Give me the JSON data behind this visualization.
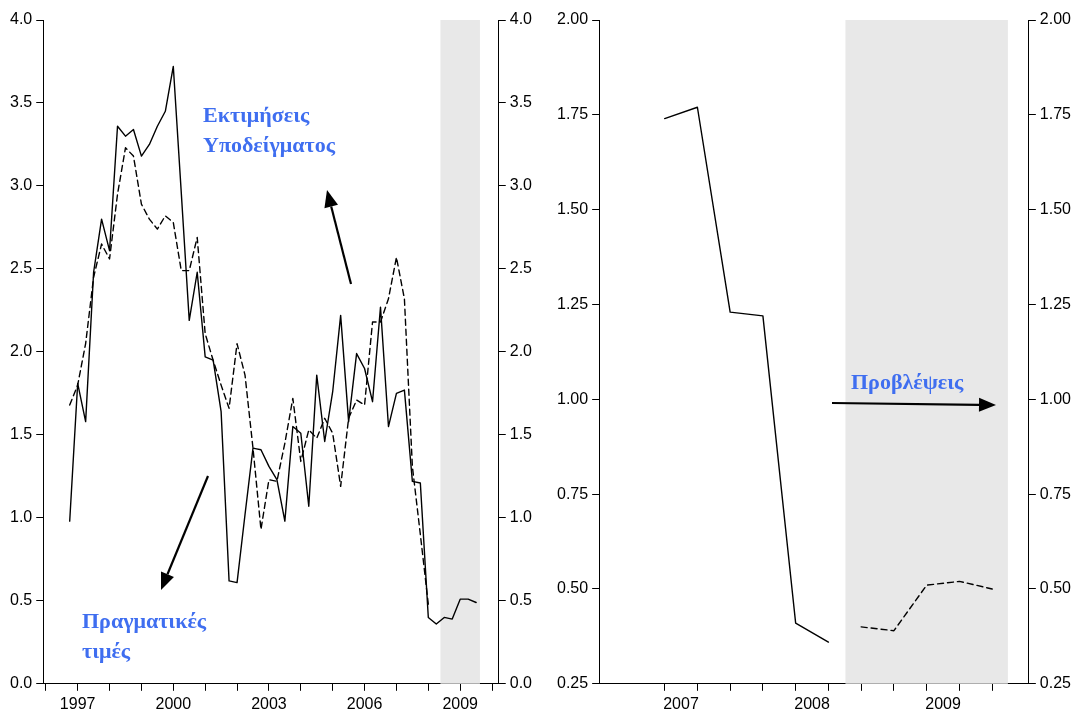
{
  "chart_data": [
    {
      "type": "line",
      "x": [
        1996.75,
        1997,
        1997.25,
        1997.5,
        1997.75,
        1998,
        1998.25,
        1998.5,
        1998.75,
        1999,
        1999.25,
        1999.5,
        1999.75,
        2000,
        2000.25,
        2000.5,
        2000.75,
        2001,
        2001.25,
        2001.5,
        2001.75,
        2002,
        2002.25,
        2002.5,
        2002.75,
        2003,
        2003.25,
        2003.5,
        2003.75,
        2004,
        2004.25,
        2004.5,
        2004.75,
        2005,
        2005.25,
        2005.5,
        2005.75,
        2006,
        2006.25,
        2006.5,
        2006.75,
        2007,
        2007.25,
        2007.5,
        2007.75,
        2008,
        2008.25,
        2008.5,
        2008.75,
        2009,
        2009.25,
        2009.5
      ],
      "series": [
        {
          "color": "#000000",
          "line_style": "solid",
          "values": [
            0.98,
            1.81,
            1.58,
            2.48,
            2.8,
            2.61,
            3.36,
            3.3,
            3.34,
            3.18,
            3.25,
            3.36,
            3.45,
            3.72,
            2.96,
            2.19,
            2.48,
            1.97,
            1.95,
            1.64,
            0.62,
            0.61,
            1.02,
            1.42,
            1.41,
            1.31,
            1.23,
            0.98,
            1.55,
            1.51,
            1.07,
            1.86,
            1.46,
            1.76,
            2.22,
            1.58,
            1.99,
            1.9,
            1.7,
            2.27,
            1.55,
            1.75,
            1.77,
            1.22,
            1.21,
            0.4,
            0.36,
            0.4,
            0.39,
            0.51,
            0.51,
            0.49
          ]
        },
        {
          "color": "#000000",
          "line_style": "dashed",
          "x": [
            1996.75,
            1997,
            1997.25,
            1997.5,
            1997.75,
            1998,
            1998.25,
            1998.5,
            1998.75,
            1999,
            1999.25,
            1999.5,
            1999.75,
            2000,
            2000.25,
            2000.5,
            2000.75,
            2001,
            2001.25,
            2001.5,
            2001.75,
            2002,
            2002.25,
            2002.5,
            2002.75,
            2003,
            2003.25,
            2003.5,
            2003.75,
            2004,
            2004.25,
            2004.5,
            2004.75,
            2005,
            2005.25,
            2005.5,
            2005.75,
            2006,
            2006.25,
            2006.5,
            2006.75,
            2007,
            2007.25,
            2007.5,
            2007.75,
            2008
          ],
          "values": [
            1.68,
            1.8,
            2.05,
            2.45,
            2.65,
            2.56,
            2.95,
            3.23,
            3.18,
            2.89,
            2.8,
            2.74,
            2.82,
            2.78,
            2.49,
            2.49,
            2.69,
            2.11,
            1.95,
            1.8,
            1.66,
            2.05,
            1.86,
            1.42,
            0.93,
            1.23,
            1.22,
            1.45,
            1.72,
            1.34,
            1.53,
            1.48,
            1.6,
            1.51,
            1.19,
            1.6,
            1.71,
            1.68,
            2.18,
            2.18,
            2.32,
            2.57,
            2.32,
            1.31,
            0.9,
            0.48
          ]
        }
      ],
      "xlim": [
        1995.92,
        2010.21
      ],
      "xticks": [
        {
          "value": 1996,
          "label": null
        },
        1997,
        {
          "value": 1998,
          "label": null
        },
        {
          "value": 1999,
          "label": null
        },
        2000,
        {
          "value": 2001,
          "label": null
        },
        {
          "value": 2002,
          "label": null
        },
        2003,
        {
          "value": 2004,
          "label": null
        },
        {
          "value": 2005,
          "label": null
        },
        2006,
        {
          "value": 2007,
          "label": null
        },
        {
          "value": 2008,
          "label": null
        },
        2009,
        {
          "value": 2010,
          "label": null
        }
      ],
      "ylim": [
        0,
        4
      ],
      "yticks": [
        {
          "value": 0,
          "label": "0.0"
        },
        {
          "value": 0.5,
          "label": "0.5"
        },
        {
          "value": 1,
          "label": "1.0"
        },
        {
          "value": 1.5,
          "label": "1.5"
        },
        {
          "value": 2,
          "label": "2.0"
        },
        {
          "value": 2.5,
          "label": "2.5"
        },
        {
          "value": 3,
          "label": "3.0"
        },
        {
          "value": 3.5,
          "label": "3.5"
        },
        {
          "value": 4,
          "label": "4.0"
        }
      ],
      "y2lim": [
        0,
        4
      ],
      "y2ticks": [
        {
          "value": 0,
          "label": "0.0"
        },
        {
          "value": 0.5,
          "label": "0.5"
        },
        {
          "value": 1,
          "label": "1.0"
        },
        {
          "value": 1.5,
          "label": "1.5"
        },
        {
          "value": 2,
          "label": "2.0"
        },
        {
          "value": 2.5,
          "label": "2.5"
        },
        {
          "value": 3,
          "label": "3.0"
        },
        {
          "value": 3.5,
          "label": "3.5"
        },
        {
          "value": 4,
          "label": "4.0"
        }
      ],
      "bands": [
        {
          "axis": "x",
          "from": 2008.38,
          "to": 2009.62,
          "color": "#e8e8e8"
        }
      ],
      "annotations": [
        "Εκτιμήσεις Υποδείγματος",
        "Πραγματικές τιμές"
      ]
    },
    {
      "type": "line",
      "series": [
        {
          "color": "#000000",
          "line_style": "solid",
          "x": [
            2007,
            2007.25,
            2007.5,
            2007.75,
            2008,
            2008.25
          ],
          "values": [
            1.74,
            1.77,
            1.23,
            1.22,
            0.41,
            0.36
          ]
        },
        {
          "color": "#000000",
          "line_style": "dashed",
          "x": [
            2008.5,
            2008.75,
            2009,
            2009.25,
            2009.5
          ],
          "values": [
            0.4,
            0.39,
            0.51,
            0.52,
            0.5
          ]
        }
      ],
      "xlim": [
        2006.5,
        2009.78
      ],
      "xticks": [
        {
          "value": 2007,
          "label": null
        },
        {
          "value": 2007.125,
          "label": "2007"
        },
        {
          "value": 2007.25,
          "label": null
        },
        {
          "value": 2007.5,
          "label": null
        },
        {
          "value": 2007.75,
          "label": null
        },
        {
          "value": 2008,
          "label": null
        },
        {
          "value": 2008.125,
          "label": "2008"
        },
        {
          "value": 2008.25,
          "label": null
        },
        {
          "value": 2008.5,
          "label": null
        },
        {
          "value": 2008.75,
          "label": null
        },
        {
          "value": 2009,
          "label": null
        },
        {
          "value": 2009.125,
          "label": "2009"
        },
        {
          "value": 2009.25,
          "label": null
        },
        {
          "value": 2009.5,
          "label": null
        }
      ],
      "ylim": [
        0.25,
        2
      ],
      "yticks": [
        {
          "value": 0.25,
          "label": "0.25"
        },
        {
          "value": 0.5,
          "label": "0.50"
        },
        {
          "value": 0.75,
          "label": "0.75"
        },
        {
          "value": 1,
          "label": "1.00"
        },
        {
          "value": 1.25,
          "label": "1.25"
        },
        {
          "value": 1.5,
          "label": "1.50"
        },
        {
          "value": 1.75,
          "label": "1.75"
        },
        {
          "value": 2,
          "label": "2.00"
        }
      ],
      "y2lim": [
        0.25,
        2
      ],
      "y2ticks": [
        {
          "value": 0.25,
          "label": "0.25"
        },
        {
          "value": 0.5,
          "label": "0.50"
        },
        {
          "value": 0.75,
          "label": "0.75"
        },
        {
          "value": 1,
          "label": "1.00"
        },
        {
          "value": 1.25,
          "label": "1.25"
        },
        {
          "value": 1.5,
          "label": "1.50"
        },
        {
          "value": 1.75,
          "label": "1.75"
        },
        {
          "value": 2,
          "label": "2.00"
        }
      ],
      "bands": [
        {
          "axis": "x",
          "from": 2008.38,
          "to": 2009.62,
          "color": "#e8e8e8"
        }
      ],
      "annotations": [
        "Προβλέψεις"
      ]
    }
  ]
}
